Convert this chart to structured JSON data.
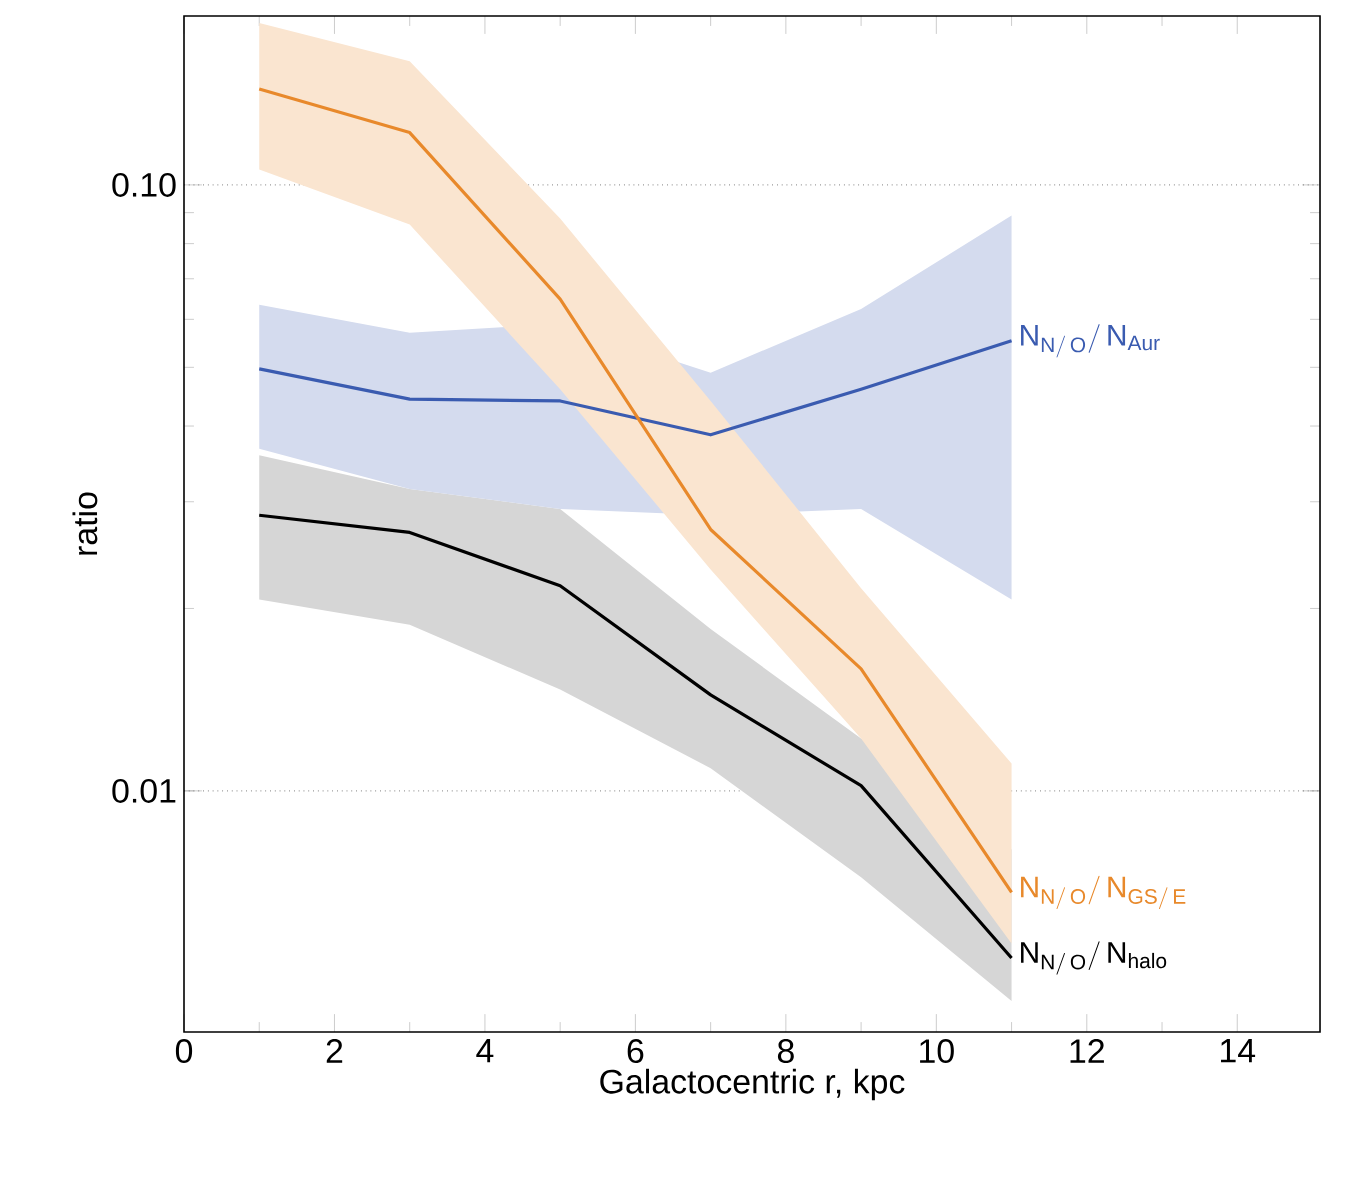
{
  "chart_data": {
    "type": "line",
    "xlabel": "Galactocentric r, kpc",
    "ylabel": "ratio",
    "log": "y",
    "grid": "y",
    "xlim": [
      0,
      15.1
    ],
    "ylim": [
      0.004,
      0.19
    ],
    "xticks": [
      0,
      2,
      4,
      6,
      8,
      10,
      12,
      14
    ],
    "yticks": [
      {
        "value": 0.01,
        "label": "0.01"
      },
      {
        "value": 0.1,
        "label": "0.10"
      }
    ],
    "x": [
      1,
      3,
      5,
      7,
      9,
      11
    ],
    "series": [
      {
        "name": "\\mathrm{N}_{\\mathrm{N/\\,O}}/\\,\\mathrm{N}_{\\mathrm{halo}}",
        "color": "#000000",
        "values": [
          0.0285,
          0.0267,
          0.0218,
          0.0144,
          0.0102,
          0.0053
        ],
        "lower": [
          0.0207,
          0.0188,
          0.0147,
          0.0109,
          0.0072,
          0.0045
        ],
        "upper": [
          0.0358,
          0.0315,
          0.0292,
          0.0185,
          0.0122,
          0.008
        ]
      },
      {
        "name": "\\mathrm{N}_{\\mathrm{N/\\,O}}/\\,\\mathrm{N}_{\\mathrm{Aur}}",
        "color": "#3a5bb0",
        "values": [
          0.0497,
          0.0443,
          0.044,
          0.0387,
          0.046,
          0.0553
        ],
        "lower": [
          0.0367,
          0.0315,
          0.0292,
          0.0285,
          0.0292,
          0.0207
        ],
        "upper": [
          0.0634,
          0.057,
          0.059,
          0.049,
          0.0624,
          0.089
        ]
      },
      {
        "name": "\\mathrm{N}_{\\mathrm{N/\\,O}}/\\,\\mathrm{N}_{\\mathrm{GS/\\,E}}",
        "color": "#e8892b",
        "values": [
          0.144,
          0.122,
          0.0648,
          0.027,
          0.0159,
          0.0068
        ],
        "lower": [
          0.106,
          0.086,
          0.046,
          0.0232,
          0.0122,
          0.0056
        ],
        "upper": [
          0.185,
          0.16,
          0.088,
          0.044,
          0.0216,
          0.0111
        ]
      }
    ]
  }
}
